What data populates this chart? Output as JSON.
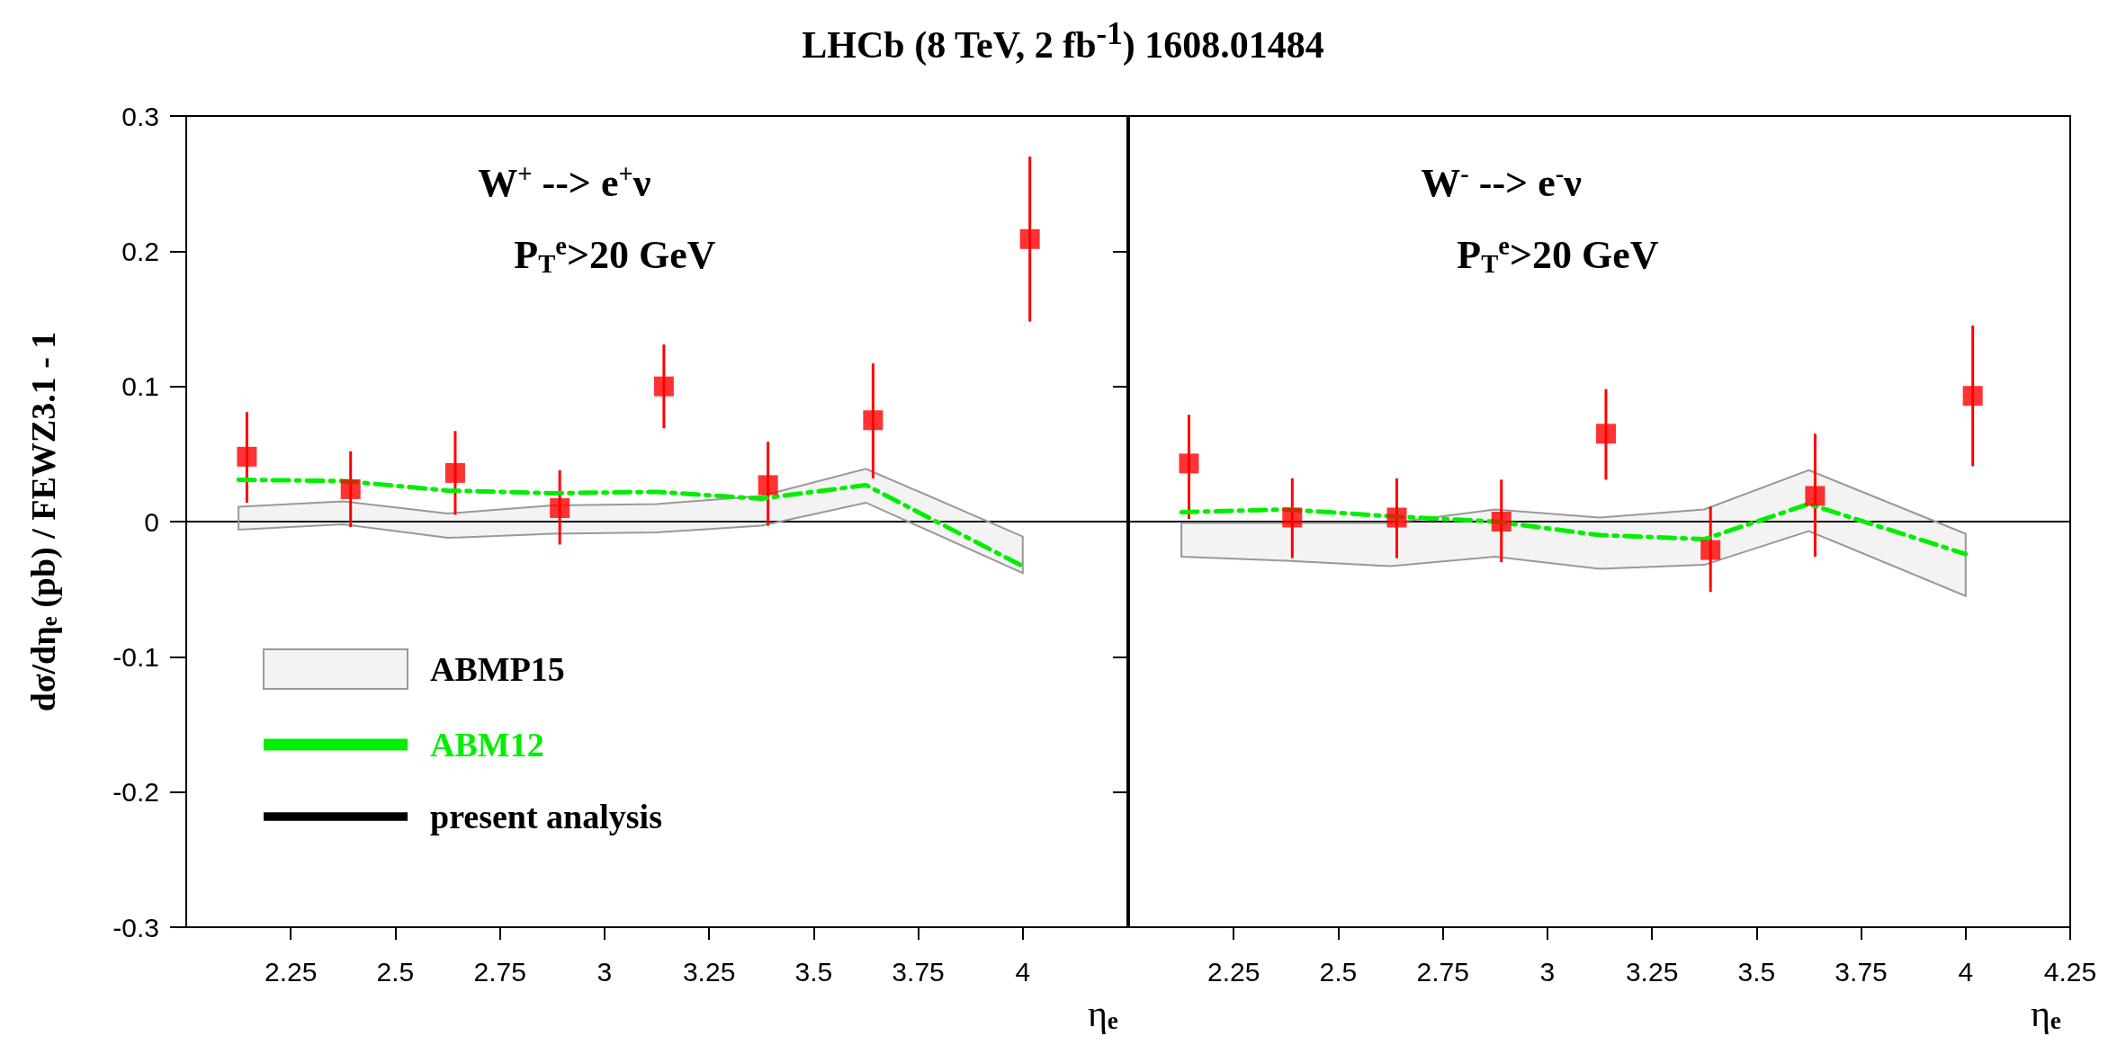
{
  "chart_data": [
    {
      "type": "scatter",
      "title": "LHCb (8 TeV, 2 fb$^{-1}$) 1608.01484",
      "ylabel": "dσ/dη$_{e}$ (pb) / FEWZ3.1 - 1",
      "xlabel": "η$_{e}$",
      "annotations": [
        "W$^{+}$ --> e$^{+}$ν",
        "P$_{T}$$^{e}$>20 GeV"
      ],
      "x": [
        2.145,
        2.393,
        2.643,
        2.893,
        3.142,
        3.391,
        3.642,
        4.017
      ],
      "series": [
        {
          "type": "scatter",
          "color": "#ff0000",
          "marker": "square",
          "values": [
            0.048,
            0.024,
            0.036,
            0.01,
            0.1,
            0.027,
            0.075,
            0.209
          ],
          "errors": [
            [
              0.014,
              0.081
            ],
            [
              -0.004,
              0.052
            ],
            [
              0.005,
              0.067
            ],
            [
              -0.017,
              0.038
            ],
            [
              0.069,
              0.131
            ],
            [
              -0.003,
              0.059
            ],
            [
              0.032,
              0.117
            ],
            [
              0.148,
              0.27
            ]
          ]
        },
        {
          "type": "area",
          "name": "ABMP15",
          "color": "#999999",
          "x": [
            2.125,
            2.375,
            2.625,
            2.875,
            3.125,
            3.375,
            3.625,
            4.0
          ],
          "values": [
            null,
            null,
            null,
            null,
            null,
            null,
            null,
            null
          ],
          "lower": [
            -0.006,
            -0.002,
            -0.012,
            -0.009,
            -0.008,
            -0.003,
            0.014,
            -0.038
          ],
          "upper": [
            0.011,
            0.015,
            0.006,
            0.012,
            0.013,
            0.019,
            0.039,
            -0.011
          ]
        },
        {
          "type": "line",
          "name": "ABM12",
          "color": "#00ee00",
          "line_style": "dashed",
          "marker": "none",
          "x": [
            2.125,
            2.375,
            2.625,
            2.875,
            3.125,
            3.375,
            3.625,
            4.0
          ],
          "values": [
            0.031,
            0.03,
            0.023,
            0.021,
            0.022,
            0.017,
            0.027,
            -0.033
          ]
        }
      ],
      "ref_lines": [
        {
          "axis": "y",
          "value": 0,
          "label": "present analysis",
          "color": "#000000"
        }
      ],
      "xlim": [
        2,
        4.25
      ],
      "xticks": [
        2.25,
        2.5,
        2.75,
        3,
        3.25,
        3.5,
        3.75,
        4
      ],
      "ylim": [
        -0.3,
        0.3
      ],
      "yticks": [
        -0.3,
        -0.2,
        -0.1,
        0,
        0.1,
        0.2,
        0.3
      ],
      "grid": false,
      "legend": "bottom left"
    },
    {
      "type": "scatter",
      "xlabel": "η$_{e}$",
      "annotations": [
        "W$^{-}$ --> e$^{-}$ν",
        "P$_{T}$$^{e}$>20 GeV"
      ],
      "x": [
        2.143,
        2.39,
        2.64,
        2.89,
        3.14,
        3.39,
        3.64,
        4.017
      ],
      "series": [
        {
          "type": "scatter",
          "color": "#ff0000",
          "marker": "square",
          "values": [
            0.043,
            0.003,
            0.003,
            0.0,
            0.065,
            -0.021,
            0.019,
            0.093
          ],
          "errors": [
            [
              0.002,
              0.079
            ],
            [
              -0.027,
              0.032
            ],
            [
              -0.027,
              0.032
            ],
            [
              -0.03,
              0.031
            ],
            [
              0.031,
              0.098
            ],
            [
              -0.052,
              0.011
            ],
            [
              -0.026,
              0.065
            ],
            [
              0.041,
              0.145
            ]
          ]
        },
        {
          "type": "area",
          "color": "#999999",
          "x": [
            2.125,
            2.375,
            2.625,
            2.875,
            3.125,
            3.375,
            3.625,
            4.0
          ],
          "values": [
            null,
            null,
            null,
            null,
            null,
            null,
            null,
            null
          ],
          "lower": [
            -0.026,
            -0.029,
            -0.033,
            -0.026,
            -0.035,
            -0.032,
            -0.007,
            -0.055
          ],
          "upper": [
            -0.001,
            -0.001,
            -0.001,
            0.009,
            0.003,
            0.009,
            0.038,
            -0.009
          ]
        },
        {
          "type": "line",
          "color": "#00ee00",
          "line_style": "dashed",
          "marker": "none",
          "x": [
            2.125,
            2.375,
            2.625,
            2.875,
            3.125,
            3.375,
            3.625,
            4.0
          ],
          "values": [
            0.007,
            0.009,
            0.004,
            0.0,
            -0.01,
            -0.013,
            0.013,
            -0.024
          ]
        }
      ],
      "ref_lines": [
        {
          "axis": "y",
          "value": 0,
          "color": "#000000"
        }
      ],
      "xlim": [
        2,
        4.25
      ],
      "xticks": [
        2.25,
        2.5,
        2.75,
        3,
        3.25,
        3.5,
        3.75,
        4,
        4.25
      ],
      "ylim": [
        -0.3,
        0.3
      ],
      "yticks": [
        -0.3,
        -0.2,
        -0.1,
        0,
        0.1,
        0.2,
        0.3
      ],
      "grid": false,
      "tick_labels": "x"
    }
  ]
}
